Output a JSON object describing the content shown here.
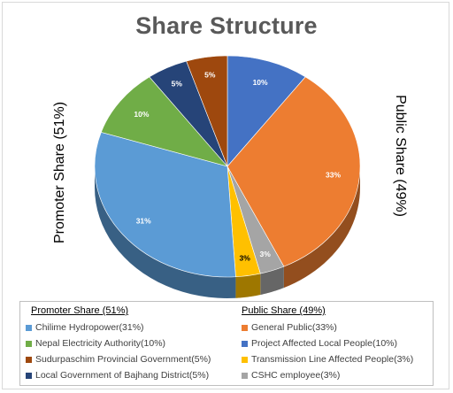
{
  "chart_data": {
    "type": "pie",
    "title": "Share Structure",
    "group_labels": {
      "left": "Promoter Share (51%)",
      "right": "Public Share (49%)"
    },
    "slices": [
      {
        "name": "Project  Affected Local People(10%)",
        "value": 10,
        "label": "10%",
        "color": "#4472C4",
        "label_color": "#ffffff"
      },
      {
        "name": "General Public(33%)",
        "value": 33,
        "label": "33%",
        "color": "#ED7D31",
        "label_color": "#ffffff"
      },
      {
        "name": "CSHC employee(3%)",
        "value": 3,
        "label": "3%",
        "color": "#A5A5A5",
        "label_color": "#ffffff"
      },
      {
        "name": "Transmission Line Affected People(3%)",
        "value": 3,
        "label": "3%",
        "color": "#FFC000",
        "label_color": "#000000"
      },
      {
        "name": "Chilime Hydropower(31%)",
        "value": 31,
        "label": "31%",
        "color": "#5B9BD5",
        "label_color": "#ffffff"
      },
      {
        "name": "Nepal Electricity Authority(10%)",
        "value": 10,
        "label": "10%",
        "color": "#70AD47",
        "label_color": "#ffffff"
      },
      {
        "name": "Local Government of Bajhang District(5%)",
        "value": 5,
        "label": "5%",
        "color": "#264478",
        "label_color": "#ffffff"
      },
      {
        "name": "Sudurpaschim Provincial Government(5%)",
        "value": 5,
        "label": "5%",
        "color": "#9E480E",
        "label_color": "#ffffff"
      }
    ]
  },
  "legend": {
    "promoter_heading": "Promoter Share (51%)",
    "public_heading": "Public Share (49%)",
    "promoter_items": [
      {
        "label": "Chilime Hydropower(31%)",
        "color": "#5B9BD5"
      },
      {
        "label": "Nepal Electricity Authority(10%)",
        "color": "#70AD47"
      },
      {
        "label": "Sudurpaschim Provincial Government(5%)",
        "color": "#9E480E"
      },
      {
        "label": "Local Government of Bajhang District(5%)",
        "color": "#264478"
      }
    ],
    "public_items": [
      {
        "label": "General Public(33%)",
        "color": "#ED7D31"
      },
      {
        "label": "Project  Affected Local People(10%)",
        "color": "#4472C4"
      },
      {
        "label": "Transmission Line Affected People(3%)",
        "color": "#FFC000"
      },
      {
        "label": "CSHC employee(3%)",
        "color": "#A5A5A5"
      }
    ]
  }
}
